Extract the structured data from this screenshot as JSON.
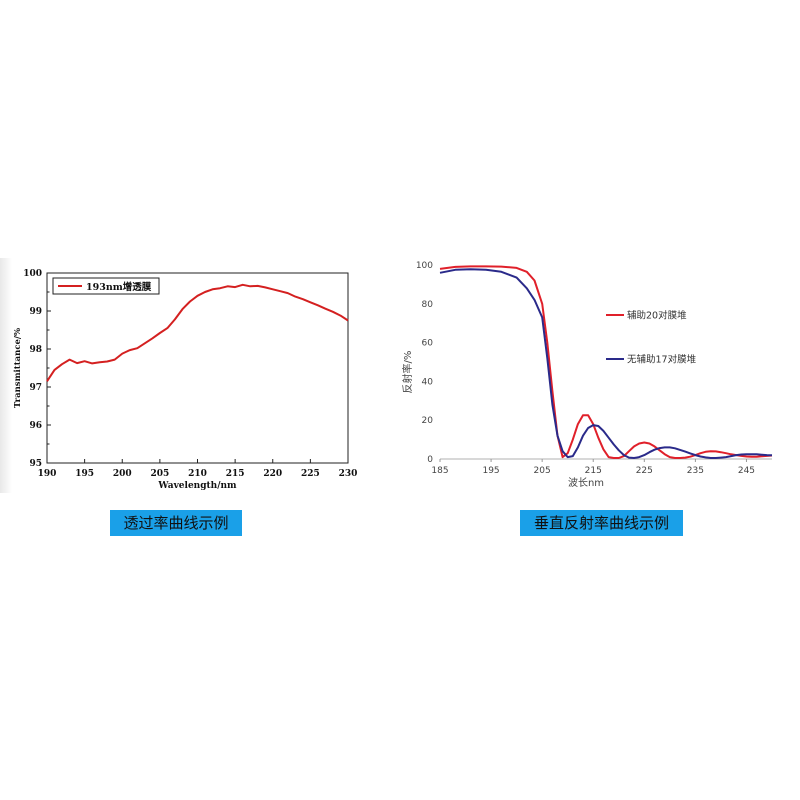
{
  "chart_data": [
    {
      "type": "line",
      "title": "",
      "xlabel": "Wavelength/nm",
      "ylabel": "Transmittance/%",
      "xlim": [
        190,
        230
      ],
      "ylim": [
        95,
        100
      ],
      "xticks": [
        "190",
        "195",
        "200",
        "205",
        "210",
        "215",
        "220",
        "225",
        "230"
      ],
      "yticks": [
        "95",
        "96",
        "97",
        "98",
        "99",
        "100"
      ],
      "legend_position": "top-left",
      "series": [
        {
          "name": "193nm增透膜",
          "color": "#d42020",
          "x": [
            190,
            191,
            192,
            193,
            194,
            195,
            196,
            197,
            198,
            199,
            200,
            201,
            202,
            203,
            204,
            205,
            206,
            207,
            208,
            209,
            210,
            211,
            212,
            213,
            214,
            215,
            216,
            217,
            218,
            219,
            220,
            221,
            222,
            223,
            224,
            225,
            226,
            227,
            228,
            229,
            230
          ],
          "y": [
            97.15,
            97.45,
            97.6,
            97.72,
            97.63,
            97.68,
            97.62,
            97.65,
            97.67,
            97.72,
            97.88,
            97.97,
            98.02,
            98.15,
            98.28,
            98.42,
            98.55,
            98.78,
            99.05,
            99.25,
            99.4,
            99.5,
            99.57,
            99.6,
            99.65,
            99.63,
            99.69,
            99.65,
            99.66,
            99.62,
            99.57,
            99.52,
            99.47,
            99.38,
            99.31,
            99.23,
            99.15,
            99.06,
            98.98,
            98.88,
            98.75
          ]
        }
      ]
    },
    {
      "type": "line",
      "title": "",
      "xlabel": "波长nm",
      "ylabel": "反射率/%",
      "xlim": [
        185,
        250
      ],
      "ylim": [
        0,
        100
      ],
      "xticks": [
        "185",
        "195",
        "205",
        "215",
        "225",
        "235",
        "245"
      ],
      "yticks": [
        "0",
        "20",
        "40",
        "60",
        "80",
        "100"
      ],
      "legend_position": "right",
      "series": [
        {
          "name": "辅助20对膜堆",
          "color": "#e0202a",
          "x": [
            185,
            188,
            191,
            194,
            197,
            200,
            202,
            203.5,
            205,
            206,
            207,
            208,
            209,
            210,
            211,
            212,
            213,
            214,
            215,
            216,
            217,
            218,
            219,
            220,
            221,
            222,
            223,
            224,
            225,
            226,
            227,
            228,
            229,
            230,
            231,
            232,
            233,
            234,
            235,
            236,
            237,
            238,
            239,
            240,
            241,
            242,
            243,
            244,
            245,
            246,
            247,
            248,
            249,
            250
          ],
          "y": [
            98,
            99,
            99.3,
            99.3,
            99.2,
            98.5,
            96.5,
            92,
            80,
            60,
            35,
            12,
            1,
            3,
            10,
            18,
            22.5,
            22.5,
            18,
            11,
            5,
            1,
            0.5,
            0.5,
            1.5,
            4,
            6.5,
            8,
            8.5,
            8,
            6.5,
            4.5,
            2.5,
            1,
            0.5,
            0.5,
            0.7,
            1.2,
            2,
            3,
            3.7,
            4,
            3.9,
            3.5,
            3,
            2.4,
            2,
            1.6,
            1.3,
            1.2,
            1.2,
            1.4,
            1.6,
            1.8
          ],
          "note": ""
        },
        {
          "name": "无辅助17对膜堆",
          "color": "#2a2a8a",
          "x": [
            185,
            188,
            191,
            194,
            197,
            200,
            202,
            203.5,
            205,
            206,
            207,
            208,
            209,
            210,
            211,
            212,
            213,
            214,
            215,
            216,
            217,
            218,
            219,
            220,
            221,
            222,
            223,
            224,
            225,
            226,
            227,
            228,
            229,
            230,
            231,
            232,
            233,
            234,
            235,
            236,
            237,
            238,
            239,
            240,
            241,
            242,
            243,
            244,
            245,
            246,
            247,
            248,
            249,
            250
          ],
          "y": [
            96,
            97.5,
            97.8,
            97.5,
            96.5,
            93.5,
            88,
            82,
            73,
            52,
            28,
            12,
            4,
            1,
            1.5,
            6,
            12,
            16,
            17.5,
            17,
            14.5,
            11,
            7.5,
            4.5,
            2,
            0.7,
            0.5,
            1,
            2,
            3.5,
            4.8,
            5.6,
            6,
            6,
            5.5,
            4.7,
            3.8,
            2.9,
            2,
            1.3,
            0.8,
            0.5,
            0.5,
            0.7,
            1,
            1.5,
            2,
            2.3,
            2.5,
            2.5,
            2.4,
            2.2,
            2,
            1.9
          ]
        }
      ]
    }
  ],
  "captions": {
    "left": "透过率曲线示例",
    "right": "垂直反射率曲线示例"
  }
}
